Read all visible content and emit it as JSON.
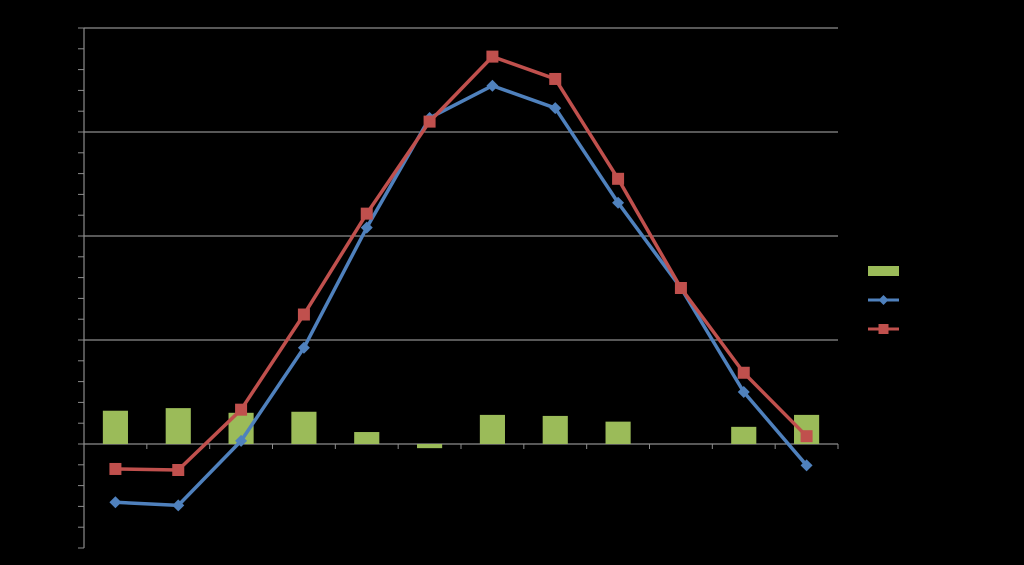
{
  "chart_data": {
    "type": "line",
    "title": "",
    "xlabel": "",
    "ylabel": "",
    "ylim": [
      -2,
      8
    ],
    "major_gridlines": [
      0,
      2,
      4,
      6,
      8
    ],
    "minor_tick_step": 0.4,
    "grid": true,
    "legend": "right",
    "x": [
      1,
      2,
      3,
      4,
      5,
      6,
      7,
      8,
      9,
      10,
      11,
      12
    ],
    "series": [
      {
        "kind": "bar",
        "color": "#9BBB59",
        "values": [
          0.64,
          0.69,
          0.6,
          0.62,
          0.23,
          -0.08,
          0.56,
          0.54,
          0.43,
          0.0,
          0.33,
          0.56
        ]
      },
      {
        "kind": "line",
        "color": "#4F81BD",
        "marker": "diamond",
        "values": [
          -1.12,
          -1.18,
          0.06,
          1.85,
          4.16,
          6.27,
          6.89,
          6.46,
          4.64,
          3.0,
          1.0,
          -0.41
        ]
      },
      {
        "kind": "line",
        "color": "#C0504D",
        "marker": "square",
        "values": [
          -0.48,
          -0.5,
          0.66,
          2.49,
          4.43,
          6.2,
          7.45,
          7.02,
          5.1,
          3.0,
          1.37,
          0.15
        ]
      }
    ]
  }
}
